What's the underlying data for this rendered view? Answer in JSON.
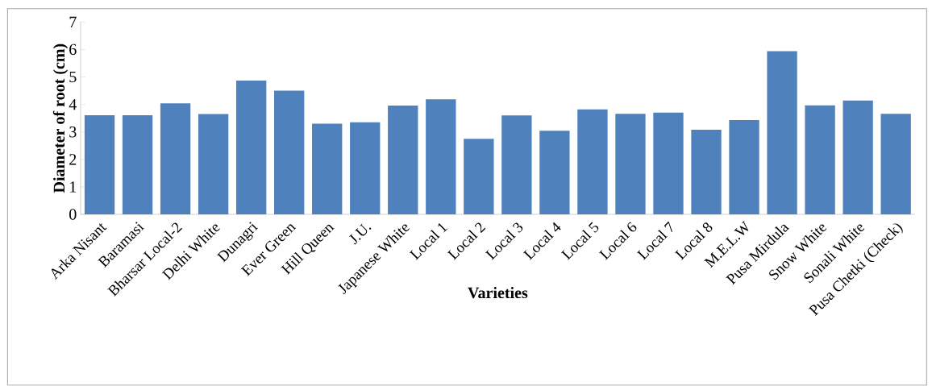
{
  "chart_data": {
    "type": "bar",
    "xlabel": "Varieties",
    "ylabel": "Diameter of root (cm)",
    "categories": [
      "Arka Nisant",
      "Baramasi",
      "Bharsar Local-2",
      "Delhi White",
      "Dunagri",
      "Ever Green",
      "Hill Queen",
      "J.U.",
      "Japanese White",
      "Local 1",
      "Local 2",
      "Local 3",
      "Local 4",
      "Local 5",
      "Local 6",
      "Local 7",
      "Local 8",
      "M.E.L.W",
      "Pusa Mirdula",
      "Snow White",
      "Sonali White",
      "Pusa Chetki (Check)"
    ],
    "values": [
      3.61,
      3.61,
      4.04,
      3.65,
      4.87,
      4.5,
      3.3,
      3.35,
      3.96,
      4.19,
      2.75,
      3.6,
      3.04,
      3.82,
      3.66,
      3.7,
      3.08,
      3.43,
      5.94,
      3.97,
      4.14,
      3.66
    ],
    "color": "#4f81bd",
    "ylim": [
      0,
      7
    ],
    "yticks": [
      0,
      1,
      2,
      3,
      4,
      5,
      6,
      7
    ]
  }
}
